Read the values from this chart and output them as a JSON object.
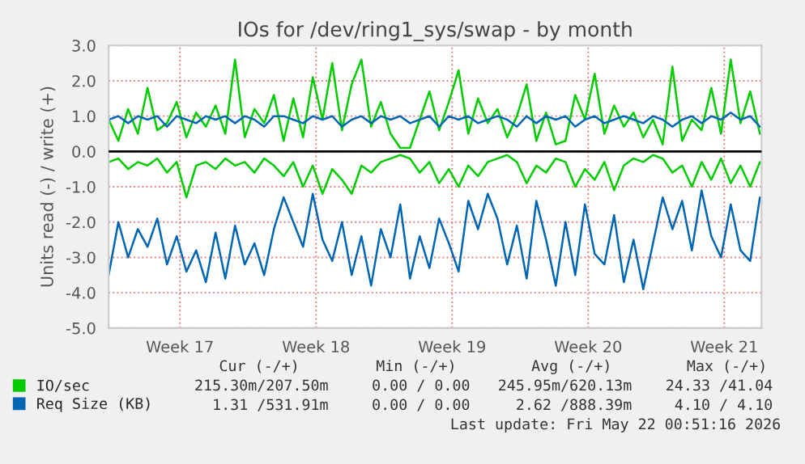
{
  "chart_data": {
    "type": "line",
    "title": "IOs for /dev/ring1_sys/swap - by month",
    "ylabel": "Units read (-) / write (+)",
    "x": [
      "2026-04-19T20:00",
      "2026-04-20T08:00",
      "2026-04-20T20:00",
      "2026-04-21T08:00",
      "2026-04-21T20:00",
      "2026-04-22T08:00",
      "2026-04-22T20:00",
      "2026-04-23T08:00",
      "2026-04-23T20:00",
      "2026-04-24T08:00",
      "2026-04-24T20:00",
      "2026-04-25T08:00",
      "2026-04-25T20:00",
      "2026-04-26T08:00",
      "2026-04-26T20:00",
      "2026-04-27T08:00",
      "2026-04-27T20:00",
      "2026-04-28T08:00",
      "2026-04-28T20:00",
      "2026-04-29T08:00",
      "2026-04-29T20:00",
      "2026-04-30T08:00",
      "2026-04-30T20:00",
      "2026-05-01T08:00",
      "2026-05-01T20:00",
      "2026-05-02T08:00",
      "2026-05-02T20:00",
      "2026-05-03T08:00",
      "2026-05-03T20:00",
      "2026-05-04T08:00",
      "2026-05-04T20:00",
      "2026-05-05T08:00",
      "2026-05-05T20:00",
      "2026-05-06T08:00",
      "2026-05-06T20:00",
      "2026-05-07T08:00",
      "2026-05-07T20:00",
      "2026-05-08T08:00",
      "2026-05-08T20:00",
      "2026-05-09T08:00",
      "2026-05-09T20:00",
      "2026-05-10T08:00",
      "2026-05-10T20:00",
      "2026-05-11T08:00",
      "2026-05-11T20:00",
      "2026-05-12T08:00",
      "2026-05-12T20:00",
      "2026-05-13T08:00",
      "2026-05-13T20:00",
      "2026-05-14T08:00",
      "2026-05-14T20:00",
      "2026-05-15T08:00",
      "2026-05-15T20:00",
      "2026-05-16T08:00",
      "2026-05-16T20:00",
      "2026-05-17T08:00",
      "2026-05-17T20:00",
      "2026-05-18T08:00",
      "2026-05-18T20:00",
      "2026-05-19T08:00",
      "2026-05-19T20:00",
      "2026-05-20T08:00",
      "2026-05-20T20:00",
      "2026-05-21T08:00",
      "2026-05-21T20:00",
      "2026-05-22T08:00",
      "2026-05-22T20:00",
      "2026-05-23T08:00"
    ],
    "xlim": [
      "2026-04-19T20:00",
      "2026-05-23T10:00"
    ],
    "xticks": [
      {
        "value": "2026-04-23T12:00",
        "label": "Week 17"
      },
      {
        "value": "2026-04-30T12:00",
        "label": "Week 18"
      },
      {
        "value": "2026-05-07T12:00",
        "label": "Week 19"
      },
      {
        "value": "2026-05-14T12:00",
        "label": "Week 20"
      },
      {
        "value": "2026-05-21T12:00",
        "label": "Week 21"
      }
    ],
    "ylim": [
      -5,
      3
    ],
    "yticks": [
      {
        "value": -5,
        "label": "-5.0"
      },
      {
        "value": -4,
        "label": "-4.0"
      },
      {
        "value": -3,
        "label": "-3.0"
      },
      {
        "value": -2,
        "label": "-2.0"
      },
      {
        "value": -1,
        "label": "-1.0"
      },
      {
        "value": 0,
        "label": "0.0"
      },
      {
        "value": 1,
        "label": "1.0"
      },
      {
        "value": 2,
        "label": "2.0"
      },
      {
        "value": 3,
        "label": "3.0"
      }
    ],
    "series": [
      {
        "name": "IO/sec",
        "color": "#00cc00",
        "values": [
          0.9,
          0.3,
          1.2,
          0.5,
          1.8,
          0.6,
          0.8,
          1.4,
          0.4,
          1.1,
          0.7,
          1.3,
          0.5,
          2.6,
          0.4,
          1.2,
          0.8,
          1.6,
          0.3,
          1.5,
          0.4,
          2.1,
          0.9,
          2.5,
          0.6,
          1.9,
          2.6,
          0.7,
          1.4,
          0.5,
          0.1,
          0.1,
          0.9,
          1.7,
          0.6,
          1.4,
          2.3,
          0.5,
          1.5,
          0.8,
          1.2,
          0.4,
          1.0,
          1.9,
          0.3,
          1.1,
          0.2,
          0.3,
          1.6,
          0.9,
          2.2,
          0.5,
          1.3,
          0.7,
          1.1,
          0.4,
          0.9,
          0.2,
          2.4,
          0.3,
          0.9,
          0.6,
          1.8,
          0.5,
          2.6,
          0.8,
          1.7,
          0.5
        ]
      },
      {
        "color": "#00cc00",
        "values": [
          -0.3,
          -0.2,
          -0.5,
          -0.3,
          -0.4,
          -0.2,
          -0.6,
          -0.3,
          -1.3,
          -0.4,
          -0.3,
          -0.5,
          -0.2,
          -0.4,
          -0.3,
          -0.6,
          -0.2,
          -0.4,
          -0.7,
          -0.3,
          -1.0,
          -0.4,
          -1.2,
          -0.5,
          -0.8,
          -1.2,
          -0.4,
          -0.6,
          -0.3,
          -0.2,
          -0.1,
          -0.2,
          -0.6,
          -0.3,
          -0.9,
          -0.5,
          -1.0,
          -0.4,
          -0.7,
          -0.3,
          -0.2,
          -0.1,
          -0.3,
          -0.9,
          -0.4,
          -0.6,
          -0.2,
          -0.3,
          -1.0,
          -0.5,
          -0.8,
          -0.3,
          -1.1,
          -0.4,
          -0.2,
          -0.3,
          -0.1,
          -0.2,
          -0.6,
          -0.4,
          -1.0,
          -0.3,
          -0.8,
          -0.2,
          -0.9,
          -0.4,
          -1.0,
          -0.3
        ]
      },
      {
        "name": "Req Size (KB)",
        "color": "#0066b3",
        "values": [
          0.9,
          1.0,
          0.8,
          1.0,
          0.9,
          1.0,
          0.7,
          1.0,
          0.9,
          0.8,
          1.0,
          0.9,
          1.0,
          0.8,
          1.0,
          0.9,
          0.7,
          1.0,
          1.0,
          0.9,
          0.8,
          1.0,
          0.9,
          1.0,
          0.7,
          0.9,
          1.0,
          0.8,
          1.0,
          0.9,
          1.0,
          0.8,
          0.9,
          1.0,
          0.7,
          1.0,
          0.9,
          1.0,
          0.8,
          0.9,
          1.0,
          0.9,
          0.7,
          1.0,
          0.8,
          1.0,
          0.9,
          1.0,
          0.7,
          0.9,
          1.0,
          0.8,
          0.9,
          1.0,
          0.9,
          0.8,
          1.0,
          0.9,
          0.7,
          0.9,
          1.0,
          0.8,
          1.0,
          0.9,
          1.1,
          0.9,
          1.0,
          0.7
        ]
      },
      {
        "color": "#0066b3",
        "values": [
          -3.5,
          -2.0,
          -3.0,
          -2.2,
          -2.7,
          -1.9,
          -3.2,
          -2.4,
          -3.4,
          -2.8,
          -3.7,
          -2.3,
          -3.6,
          -2.1,
          -3.2,
          -2.6,
          -3.5,
          -2.2,
          -1.3,
          -2.0,
          -2.7,
          -1.2,
          -2.5,
          -3.1,
          -2.0,
          -3.5,
          -2.4,
          -3.8,
          -2.2,
          -3.0,
          -1.5,
          -3.6,
          -2.4,
          -3.3,
          -1.9,
          -2.6,
          -3.4,
          -1.4,
          -2.2,
          -1.2,
          -1.9,
          -3.2,
          -2.1,
          -3.6,
          -1.4,
          -2.5,
          -3.8,
          -2.0,
          -3.5,
          -1.5,
          -2.9,
          -3.2,
          -1.8,
          -3.7,
          -2.5,
          -3.9,
          -2.6,
          -1.3,
          -2.2,
          -1.4,
          -2.8,
          -1.1,
          -2.4,
          -3.0,
          -1.5,
          -2.8,
          -3.1,
          -1.3
        ]
      }
    ],
    "ref_lines": [
      {
        "axis": "y",
        "value": 0,
        "color": "#000000"
      }
    ],
    "grid": true,
    "legend": "bottom left",
    "annotations": [
      "Cur (-/+)",
      "Min (-/+)",
      "Avg (-/+)",
      "Max (-/+)",
      "215.30m/207.50m",
      "0.00 / 0.00",
      "245.95m/620.13m",
      "24.33 /41.04",
      "1.31 /531.91m",
      "0.00 / 0.00",
      "2.62 /888.39m",
      "4.10 / 4.10",
      "Last update: Fri May 22 00:51:16 2026"
    ]
  }
}
